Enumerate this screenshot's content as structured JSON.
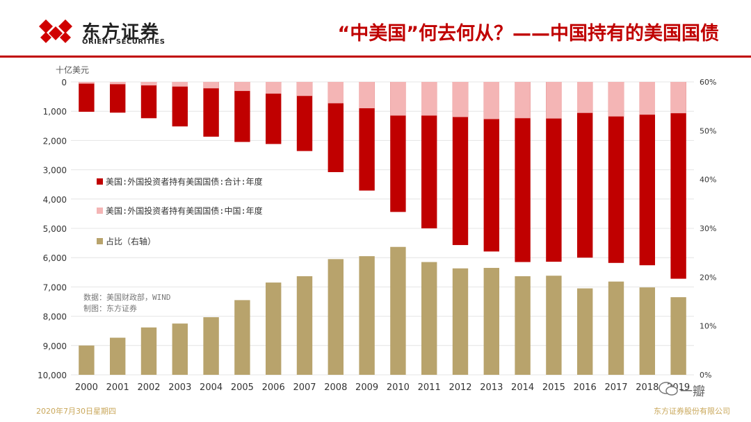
{
  "header": {
    "brand_cn": "东方证券",
    "brand_en": "ORIENT SECURITIES",
    "title": "“中美国”何去何从？——中国持有的美国国债"
  },
  "footer": {
    "date": "2020年7月30日星期四",
    "company": "东方证券股份有限公司"
  },
  "watermark": {
    "text": "一瓣"
  },
  "colors": {
    "accent": "#c00000",
    "bar_total": "#c00000",
    "bar_china": "#f4b5b5",
    "bar_ratio": "#b8a36c"
  },
  "chart_data": {
    "type": "bar",
    "left_axis_unit": "十亿美元",
    "categories": [
      "2000",
      "2001",
      "2002",
      "2003",
      "2004",
      "2005",
      "2006",
      "2007",
      "2008",
      "2009",
      "2010",
      "2011",
      "2012",
      "2013",
      "2014",
      "2015",
      "2016",
      "2017",
      "2018",
      "2019"
    ],
    "last_category_label": "2019",
    "left_ylim": [
      0,
      10000
    ],
    "left_axis_inverted": true,
    "left_tick_labels": [
      "0",
      "1,000",
      "2,000",
      "3,000",
      "4,000",
      "5,000",
      "6,000",
      "7,000",
      "8,000",
      "9,000",
      "10,000"
    ],
    "right_ylim": [
      0,
      60
    ],
    "right_tick_labels": [
      "0%",
      "10%",
      "20%",
      "30%",
      "40%",
      "50%",
      "60%"
    ],
    "series": [
      {
        "name": "美国:外国投资者持有美国国债:合计:年度",
        "axis": "left",
        "values": [
          1020,
          1050,
          1240,
          1520,
          1870,
          2050,
          2120,
          2360,
          3080,
          3710,
          4440,
          5000,
          5570,
          5790,
          6150,
          6140,
          6000,
          6180,
          6260,
          6720
        ]
      },
      {
        "name": "美国:外国投资者持有美国国债:中国:年度",
        "axis": "left",
        "values": [
          60,
          80,
          120,
          160,
          220,
          310,
          400,
          480,
          730,
          900,
          1150,
          1150,
          1200,
          1270,
          1240,
          1250,
          1060,
          1180,
          1120,
          1070
        ]
      },
      {
        "name": "占比（右轴）",
        "axis": "right",
        "values": [
          6,
          7.6,
          9.7,
          10.5,
          11.8,
          15.3,
          18.9,
          20.2,
          23.7,
          24.3,
          26.2,
          23.1,
          21.8,
          21.9,
          20.2,
          20.3,
          17.7,
          19.1,
          17.9,
          15.9
        ]
      }
    ],
    "legend": [
      "美国:外国投资者持有美国国债:合计:年度",
      "美国:外国投资者持有美国国债:中国:年度",
      "占比（右轴）"
    ],
    "legend_position": "left",
    "source_note": "数据：美国财政部，WIND",
    "maker_note": "制图：东方证券"
  }
}
